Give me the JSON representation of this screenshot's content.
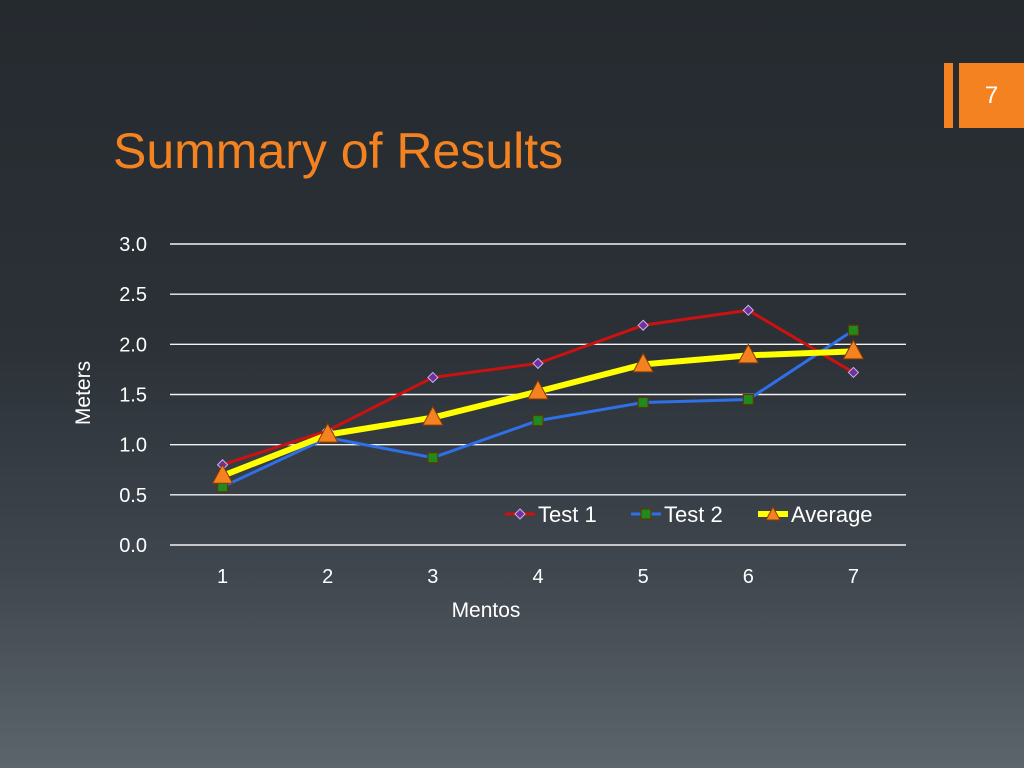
{
  "slide": {
    "number": "7",
    "title": "Summary of Results"
  },
  "colors": {
    "accent": "#f58220",
    "test1": "#cc1111",
    "test2": "#2f6fe8",
    "average": "#ffff00"
  },
  "chart_data": {
    "type": "line",
    "x": [
      1,
      2,
      3,
      4,
      5,
      6,
      7
    ],
    "xlabel": "Mentos",
    "ylabel": "Meters",
    "ylim": [
      0,
      3
    ],
    "yticks": [
      "0.0",
      "0.5",
      "1.0",
      "1.5",
      "2.0",
      "2.5",
      "3.0"
    ],
    "grid": true,
    "legend": "inside-bottom-right",
    "series": [
      {
        "name": "Test 1",
        "values": [
          0.8,
          1.14,
          1.67,
          1.81,
          2.19,
          2.34,
          1.72
        ],
        "marker": "diamond",
        "color": "#cc1111"
      },
      {
        "name": "Test 2",
        "values": [
          0.58,
          1.07,
          0.87,
          1.24,
          1.42,
          1.45,
          2.14
        ],
        "marker": "square",
        "color": "#2f6fe8"
      },
      {
        "name": "Average",
        "values": [
          0.69,
          1.1,
          1.27,
          1.53,
          1.8,
          1.89,
          1.93
        ],
        "marker": "triangle",
        "color": "#ffff00"
      }
    ]
  }
}
